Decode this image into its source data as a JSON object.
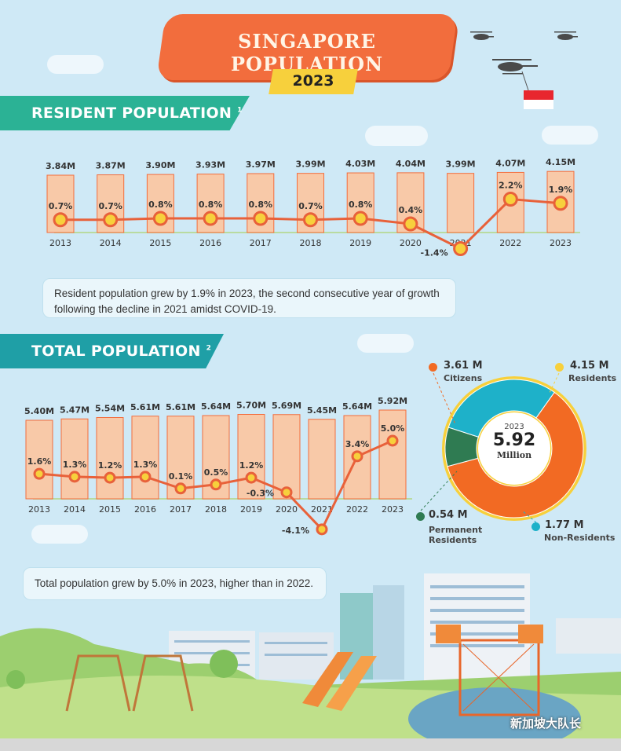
{
  "header": {
    "title": "SINGAPORE POPULATION",
    "year": "2023"
  },
  "resident": {
    "section_title": "RESIDENT POPULATION",
    "footnote_mark": "1",
    "note": "Resident population grew by 1.9% in 2023, the second consecutive year of growth following the decline in 2021 amidst COVID-19."
  },
  "total": {
    "section_title": "TOTAL POPULATION",
    "footnote_mark": "2",
    "note": "Total population grew by 5.0% in 2023, higher than in 2022."
  },
  "donut": {
    "center_year": "2023",
    "center_value": "5.92",
    "center_unit": "Million",
    "segments": [
      {
        "value": "3.61 M",
        "label": "Citizens",
        "color": "#f26a23"
      },
      {
        "value": "4.15 M",
        "label": "Residents",
        "color": "#f7d03c"
      },
      {
        "value": "0.54 M",
        "label": "Permanent Residents",
        "color": "#2f7b52"
      },
      {
        "value": "1.77 M",
        "label": "Non-Residents",
        "color": "#1eb1c9"
      }
    ]
  },
  "watermark": "新加坡大队长",
  "chart_data": [
    {
      "type": "bar",
      "title": "RESIDENT POPULATION",
      "categories": [
        "2013",
        "2014",
        "2015",
        "2016",
        "2017",
        "2018",
        "2019",
        "2020",
        "2021",
        "2022",
        "2023"
      ],
      "series": [
        {
          "values": [
            3.84,
            3.87,
            3.9,
            3.93,
            3.97,
            3.99,
            4.03,
            4.04,
            3.99,
            4.07,
            4.15
          ],
          "labels": [
            "3.84M",
            "3.87M",
            "3.90M",
            "3.93M",
            "3.97M",
            "3.99M",
            "4.03M",
            "4.04M",
            "3.99M",
            "4.07M",
            "4.15M"
          ]
        },
        {
          "values": [
            0.7,
            0.7,
            0.8,
            0.8,
            0.8,
            0.7,
            0.8,
            0.4,
            -1.4,
            2.2,
            1.9
          ],
          "labels": [
            "0.7%",
            "0.7%",
            "0.8%",
            "0.8%",
            "0.8%",
            "0.7%",
            "0.8%",
            "0.4%",
            "-1.4%",
            "2.2%",
            "1.9%"
          ]
        }
      ]
    },
    {
      "type": "bar",
      "title": "TOTAL POPULATION",
      "categories": [
        "2013",
        "2014",
        "2015",
        "2016",
        "2017",
        "2018",
        "2019",
        "2020",
        "2021",
        "2022",
        "2023"
      ],
      "series": [
        {
          "values": [
            5.4,
            5.47,
            5.54,
            5.61,
            5.61,
            5.64,
            5.7,
            5.69,
            5.45,
            5.64,
            5.92
          ],
          "labels": [
            "5.40M",
            "5.47M",
            "5.54M",
            "5.61M",
            "5.61M",
            "5.64M",
            "5.70M",
            "5.69M",
            "5.45M",
            "5.64M",
            "5.92M"
          ]
        },
        {
          "values": [
            1.6,
            1.3,
            1.2,
            1.3,
            0.1,
            0.5,
            1.2,
            -0.3,
            -4.1,
            3.4,
            5.0
          ],
          "labels": [
            "1.6%",
            "1.3%",
            "1.2%",
            "1.3%",
            "0.1%",
            "0.5%",
            "1.2%",
            "-0.3%",
            "-4.1%",
            "3.4%",
            "5.0%"
          ]
        }
      ]
    },
    {
      "type": "pie",
      "title": "",
      "categories": [
        "Citizens",
        "Permanent Residents",
        "Non-Residents"
      ],
      "values": [
        3.61,
        0.54,
        1.77
      ]
    }
  ],
  "colors": {
    "bar_fill": "#f8c9a8",
    "bar_stroke": "#f26d3d",
    "line": "#e8613a",
    "marker_fill": "#f7d03c",
    "ribbon": "#2bb295"
  }
}
